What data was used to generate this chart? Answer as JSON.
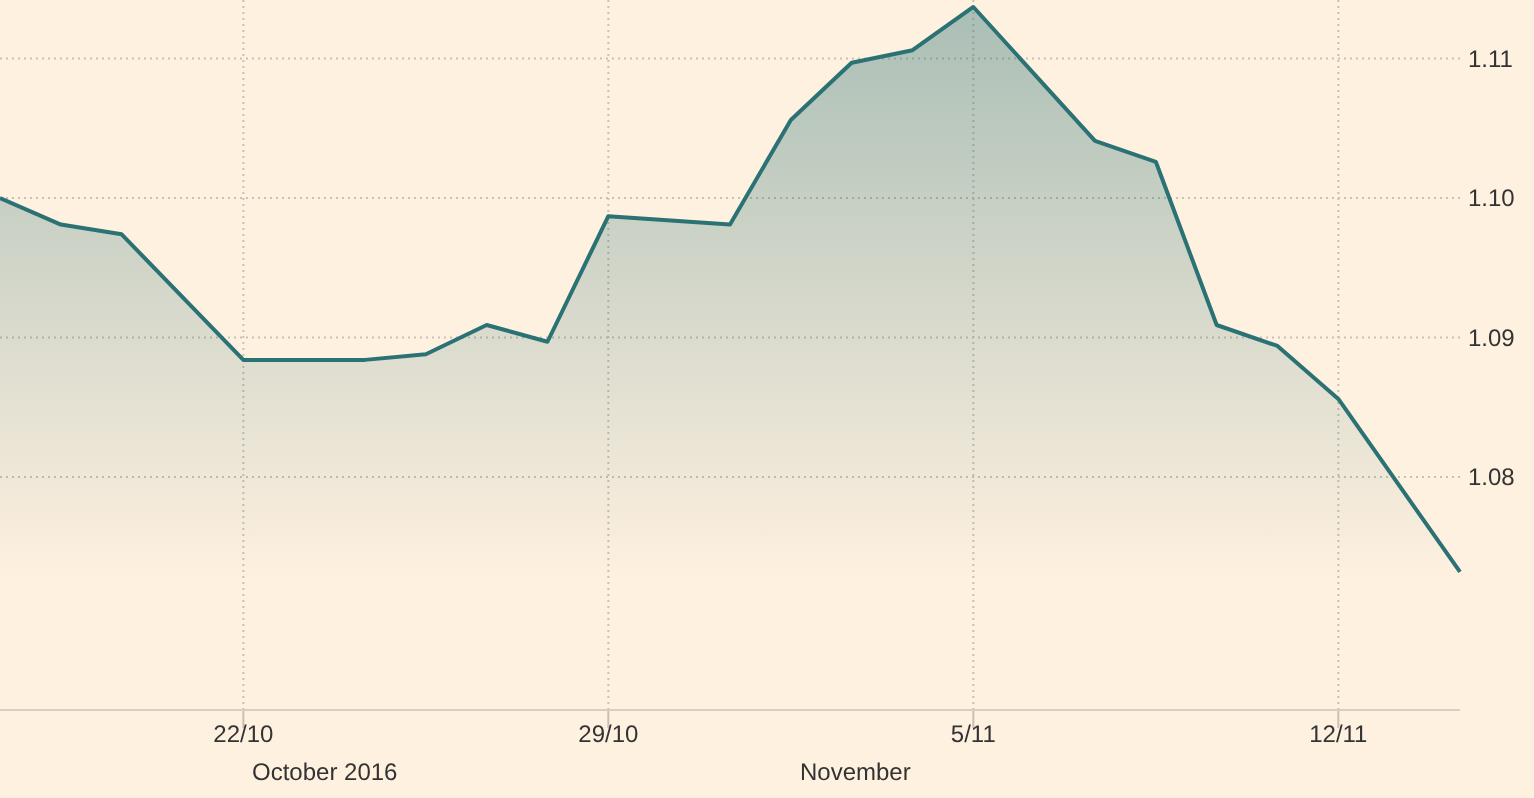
{
  "chart_data": {
    "type": "area",
    "x": [
      "2016-10-17T08:00",
      "2016-10-18T12:00",
      "2016-10-19T16:00",
      "2016-10-22T00:00",
      "2016-10-23T04:00",
      "2016-10-24T08:00",
      "2016-10-25T12:00",
      "2016-10-26T16:00",
      "2016-10-27T20:00",
      "2016-10-29T00:00",
      "2016-10-31T08:00",
      "2016-11-01T12:00",
      "2016-11-02T16:00",
      "2016-11-03T20:00",
      "2016-11-05T00:00",
      "2016-11-07T08:00",
      "2016-11-08T12:00",
      "2016-11-09T16:00",
      "2016-11-10T20:00",
      "2016-11-12T00:00",
      "2016-11-14T08:00"
    ],
    "series": [
      {
        "color": "#2b7275",
        "values": [
          1.1,
          1.0981,
          1.0974,
          1.0884,
          1.0884,
          1.0884,
          1.0888,
          1.0909,
          1.0897,
          1.0987,
          1.0981,
          1.1056,
          1.1097,
          1.1106,
          1.1137,
          1.1041,
          1.1026,
          1.0909,
          1.0894,
          1.0856,
          1.0732
        ]
      }
    ],
    "xlim": [
      "2016-10-17T08:00",
      "2016-11-14T08:00"
    ],
    "xticks": [
      {
        "value": "2016-10-22",
        "label": "22/10"
      },
      {
        "value": "2016-10-29",
        "label": "29/10"
      },
      {
        "value": "2016-11-05",
        "label": "5/11"
      },
      {
        "value": "2016-11-12",
        "label": "12/11"
      }
    ],
    "ylim": [
      1.0633,
      1.1142
    ],
    "yticks": [
      1.08,
      1.09,
      {
        "value": 1.1,
        "label": "1.10"
      },
      1.11
    ],
    "annotations": [
      "October 2016",
      "November"
    ],
    "grid": true
  }
}
